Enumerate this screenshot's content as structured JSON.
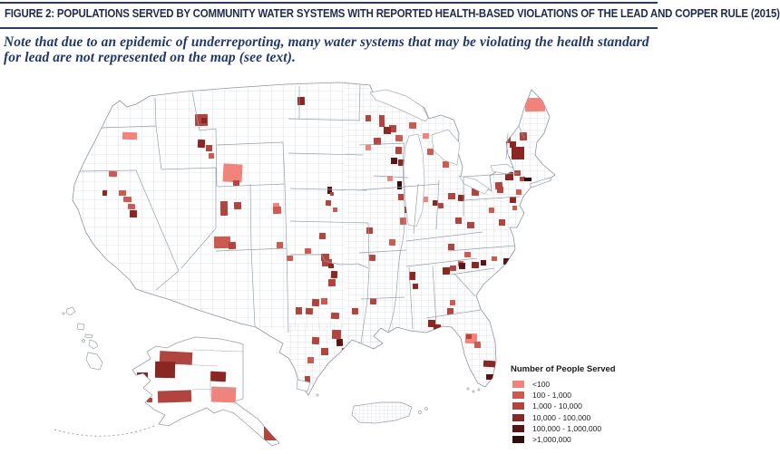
{
  "header": {
    "title": "FIGURE 2: POPULATIONS SERVED BY COMMUNITY WATER SYSTEMS WITH REPORTED HEALTH-BASED VIOLATIONS OF THE LEAD AND COPPER RULE (2015)",
    "title_color": "#1e2b4d",
    "rule_color": "#2b3b5c"
  },
  "note": {
    "text": "Note that due to an epidemic of underreporting, many water systems that may be violating the health standard for lead are not represented on the map (see text).",
    "color": "#21386b"
  },
  "legend": {
    "title": "Number of People Served",
    "items": [
      {
        "label": "<100",
        "color": "#F0837C"
      },
      {
        "label": "100 - 1,000",
        "color": "#CC5A51"
      },
      {
        "label": "1,000 - 10,000",
        "color": "#B04540"
      },
      {
        "label": "10,000 - 100,000",
        "color": "#8B2722"
      },
      {
        "label": "100,000 - 1,000,000",
        "color": "#5C1316"
      },
      {
        "label": ">1,000,000",
        "color": "#320B0D"
      }
    ]
  },
  "chart_data": {
    "type": "choropleth_map",
    "title": "Populations served by community water systems with reported health-based violations of the Lead and Copper Rule (2015)",
    "region": "United States counties; insets: Alaska, Hawaii, Puerto Rico",
    "unit": "Number of People Served",
    "classes": [
      "<100",
      "100 - 1,000",
      "1,000 - 10,000",
      "10,000 - 100,000",
      "100,000 - 1,000,000",
      ">1,000,000"
    ],
    "class_colors": [
      "#F0837C",
      "#CC5A51",
      "#B04540",
      "#8B2722",
      "#5C1316",
      "#320B0D"
    ],
    "base_county_fill": "#ffffff",
    "county_line_color": "#c6cad0",
    "state_line_color": "#97a0ab",
    "markers": [
      [
        215,
        126,
        14,
        13,
        3
      ],
      [
        222,
        130,
        6,
        6,
        4
      ],
      [
        135,
        146,
        16,
        8,
        1
      ],
      [
        120,
        189,
        9,
        6,
        2
      ],
      [
        218,
        154,
        8,
        9,
        4
      ],
      [
        227,
        160,
        7,
        7,
        3
      ],
      [
        230,
        169,
        6,
        6,
        2
      ],
      [
        246,
        181,
        21,
        20,
        1
      ],
      [
        257,
        199,
        7,
        6,
        3
      ],
      [
        243,
        222,
        8,
        16,
        3
      ],
      [
        258,
        223,
        8,
        8,
        3
      ],
      [
        236,
        261,
        18,
        13,
        2
      ],
      [
        252,
        267,
        8,
        8,
        3
      ],
      [
        131,
        210,
        8,
        6,
        2
      ],
      [
        136,
        217,
        9,
        6,
        2
      ],
      [
        141,
        225,
        8,
        6,
        2
      ],
      [
        143,
        232,
        8,
        8,
        4
      ],
      [
        113,
        210,
        5,
        6,
        4
      ],
      [
        301,
        224,
        7,
        7,
        1
      ],
      [
        303,
        229,
        6,
        6,
        2
      ],
      [
        328,
        107,
        8,
        9,
        4
      ],
      [
        403,
        127,
        6,
        7,
        3
      ],
      [
        418,
        127,
        6,
        13,
        3
      ],
      [
        429,
        138,
        8,
        8,
        3
      ],
      [
        361,
        206,
        5,
        8,
        5
      ],
      [
        364,
        212,
        4,
        4,
        3
      ],
      [
        359,
        221,
        6,
        6,
        3
      ],
      [
        367,
        229,
        5,
        5,
        2
      ],
      [
        301,
        228,
        9,
        8,
        2
      ],
      [
        352,
        257,
        7,
        7,
        3
      ],
      [
        305,
        267,
        7,
        7,
        2
      ],
      [
        336,
        274,
        7,
        6,
        2
      ],
      [
        316,
        282,
        7,
        6,
        2
      ],
      [
        355,
        286,
        11,
        8,
        3
      ],
      [
        362,
        291,
        6,
        5,
        4
      ],
      [
        354,
        280,
        9,
        8,
        3
      ],
      [
        365,
        299,
        7,
        8,
        4
      ],
      [
        362,
        308,
        8,
        8,
        3
      ],
      [
        326,
        339,
        7,
        8,
        3
      ],
      [
        337,
        340,
        8,
        7,
        3
      ],
      [
        344,
        330,
        8,
        8,
        3
      ],
      [
        354,
        329,
        7,
        7,
        2
      ],
      [
        365,
        345,
        9,
        7,
        3
      ],
      [
        344,
        372,
        8,
        8,
        3
      ],
      [
        354,
        384,
        8,
        8,
        3
      ],
      [
        366,
        364,
        10,
        10,
        3
      ],
      [
        371,
        374,
        7,
        8,
        5
      ],
      [
        377,
        384,
        8,
        6,
        3
      ],
      [
        339,
        394,
        7,
        7,
        2
      ],
      [
        336,
        415,
        6,
        7,
        3
      ],
      [
        408,
        329,
        7,
        7,
        3
      ],
      [
        388,
        340,
        7,
        7,
        3
      ],
      [
        407,
        281,
        7,
        7,
        3
      ],
      [
        451,
        300,
        7,
        9,
        4
      ],
      [
        455,
        313,
        6,
        6,
        4
      ],
      [
        431,
        174,
        7,
        7,
        5
      ],
      [
        439,
        176,
        7,
        7,
        4
      ],
      [
        427,
        194,
        6,
        6,
        1
      ],
      [
        412,
        152,
        8,
        8,
        3
      ],
      [
        403,
        160,
        6,
        6,
        1
      ],
      [
        423,
        140,
        8,
        8,
        4
      ],
      [
        436,
        149,
        8,
        7,
        2
      ],
      [
        451,
        135,
        8,
        7,
        2
      ],
      [
        466,
        147,
        7,
        6,
        1
      ],
      [
        436,
        162,
        7,
        8,
        3
      ],
      [
        438,
        200,
        5,
        9,
        6
      ],
      [
        439,
        214,
        6,
        7,
        3
      ],
      [
        446,
        228,
        7,
        7,
        4
      ],
      [
        441,
        240,
        7,
        8,
        2
      ],
      [
        466,
        217,
        6,
        6,
        1
      ],
      [
        477,
        221,
        6,
        6,
        4
      ],
      [
        483,
        224,
        6,
        6,
        3
      ],
      [
        488,
        178,
        7,
        7,
        2
      ],
      [
        471,
        164,
        7,
        7,
        2
      ],
      [
        458,
        209,
        6,
        6,
        1
      ],
      [
        456,
        226,
        7,
        7,
        3
      ],
      [
        429,
        264,
        7,
        7,
        2
      ],
      [
        404,
        251,
        7,
        7,
        3
      ],
      [
        494,
        269,
        7,
        7,
        3
      ],
      [
        488,
        295,
        8,
        8,
        4
      ],
      [
        496,
        293,
        7,
        6,
        3
      ],
      [
        505,
        288,
        6,
        6,
        2
      ],
      [
        494,
        213,
        8,
        7,
        3
      ],
      [
        505,
        215,
        7,
        7,
        4
      ],
      [
        520,
        208,
        8,
        8,
        3
      ],
      [
        502,
        240,
        7,
        7,
        3
      ],
      [
        515,
        245,
        8,
        7,
        3
      ],
      [
        579,
        108,
        22,
        15,
        1
      ],
      [
        573,
        146,
        8,
        9,
        3
      ],
      [
        556,
        151,
        7,
        7,
        3
      ],
      [
        562,
        156,
        7,
        7,
        4
      ],
      [
        564,
        162,
        14,
        14,
        4
      ],
      [
        554,
        173,
        8,
        9,
        4
      ],
      [
        547,
        179,
        6,
        6,
        2
      ],
      [
        546,
        201,
        8,
        8,
        3
      ],
      [
        557,
        190,
        9,
        9,
        4
      ],
      [
        567,
        188,
        7,
        6,
        3
      ],
      [
        573,
        195,
        6,
        5,
        3
      ],
      [
        578,
        196,
        8,
        4,
        6
      ],
      [
        569,
        209,
        6,
        6,
        2
      ],
      [
        562,
        217,
        7,
        7,
        4
      ],
      [
        565,
        227,
        5,
        5,
        2
      ],
      [
        548,
        206,
        7,
        7,
        3
      ],
      [
        539,
        229,
        6,
        6,
        2
      ],
      [
        550,
        242,
        7,
        7,
        3
      ],
      [
        506,
        290,
        7,
        7,
        5
      ],
      [
        520,
        289,
        8,
        7,
        4
      ],
      [
        530,
        287,
        6,
        6,
        5
      ],
      [
        555,
        285,
        7,
        7,
        5
      ],
      [
        512,
        278,
        7,
        6,
        2
      ],
      [
        542,
        283,
        6,
        5,
        2
      ],
      [
        493,
        340,
        7,
        7,
        3
      ],
      [
        496,
        331,
        6,
        6,
        2
      ],
      [
        472,
        353,
        8,
        8,
        4
      ],
      [
        478,
        358,
        8,
        9,
        4
      ],
      [
        513,
        368,
        13,
        11,
        1
      ],
      [
        514,
        369,
        6,
        5,
        3
      ],
      [
        523,
        377,
        7,
        7,
        2
      ],
      [
        533,
        398,
        13,
        7,
        4
      ],
      [
        536,
        413,
        11,
        6,
        5
      ],
      [
        176,
        388,
        36,
        14,
        3
      ],
      [
        171,
        399,
        22,
        18,
        4
      ],
      [
        151,
        411,
        12,
        7,
        4
      ],
      [
        232,
        410,
        17,
        11,
        4
      ],
      [
        174,
        431,
        37,
        13,
        3
      ],
      [
        233,
        427,
        27,
        17,
        1
      ],
      [
        291,
        471,
        14,
        15,
        3
      ],
      [
        162,
        439,
        6,
        5,
        3
      ]
    ]
  }
}
